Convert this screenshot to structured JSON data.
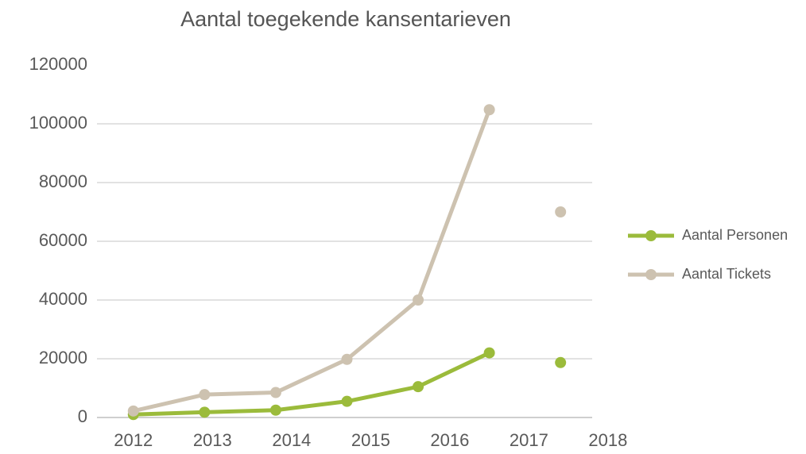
{
  "chart_data": {
    "type": "line",
    "title": "Aantal toegekende kansentarieven",
    "x": [
      2012,
      2012.9,
      2013.8,
      2014.7,
      2015.6,
      2016.5,
      2016.95,
      2017.4
    ],
    "series": [
      {
        "name": "Aantal Personen",
        "color": "#9bbb3b",
        "values": [
          1000,
          1800,
          2500,
          5500,
          10500,
          22000,
          null,
          18700
        ]
      },
      {
        "name": "Aantal Tickets",
        "color": "#cdc2b0",
        "values": [
          2200,
          7800,
          8500,
          19800,
          40000,
          104800,
          null,
          70000
        ]
      }
    ],
    "xlim": [
      2011.54,
      2017.8
    ],
    "xticks": [
      2012,
      2013,
      2014,
      2015,
      2016,
      2017,
      2018
    ],
    "ylim": [
      0,
      120000
    ],
    "yticks": [
      0,
      20000,
      40000,
      60000,
      80000,
      100000,
      120000
    ],
    "grid": true,
    "legend": "right"
  }
}
